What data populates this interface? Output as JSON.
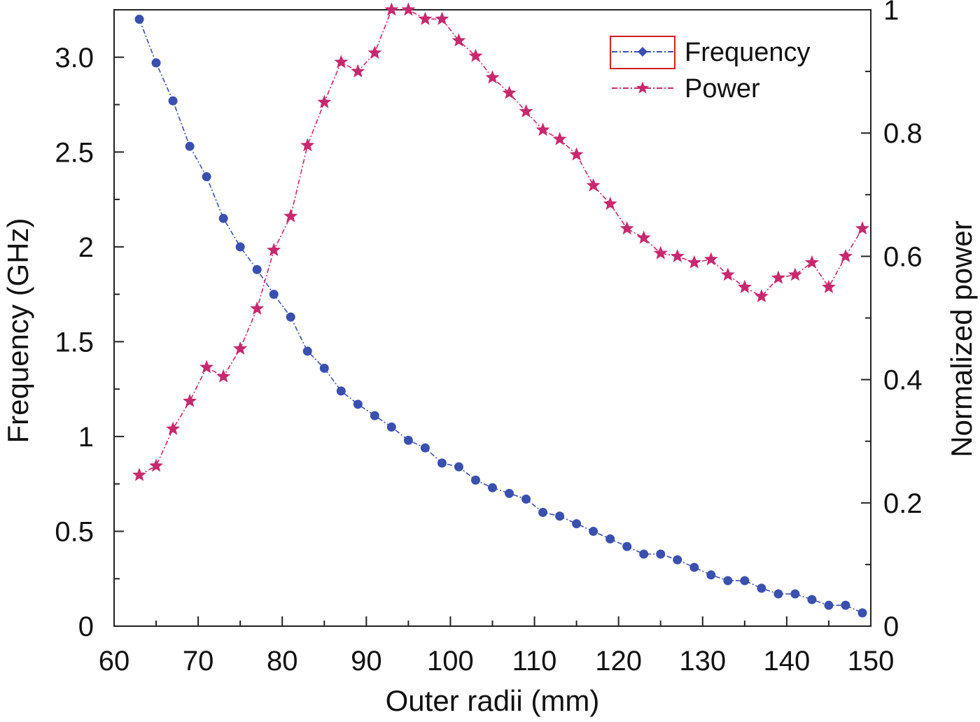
{
  "chart_data": {
    "type": "line",
    "xlabel": "Outer radii (mm)",
    "ylabel": "Frequency (GHz)",
    "y2label": "Normalized power",
    "xlim": [
      60,
      150
    ],
    "ylim": [
      0,
      3.25
    ],
    "y2lim": [
      0,
      1
    ],
    "xticks": [
      "60",
      "70",
      "80",
      "90",
      "100",
      "110",
      "120",
      "130",
      "140",
      "150"
    ],
    "yticks": [
      "0",
      "0.5",
      "1",
      "1.5",
      "2",
      "2.5",
      "3.0"
    ],
    "y2ticks": [
      "0",
      "0.2",
      "0.4",
      "0.6",
      "0.8",
      "1"
    ],
    "grid": false,
    "legend": {
      "position": "top-right"
    },
    "x": [
      63,
      65,
      67,
      69,
      71,
      73,
      75,
      77,
      79,
      81,
      83,
      85,
      87,
      89,
      91,
      93,
      95,
      97,
      99,
      101,
      103,
      105,
      107,
      109,
      111,
      113,
      115,
      117,
      119,
      121,
      123,
      125,
      127,
      129,
      131,
      133,
      135,
      137,
      139,
      141,
      143,
      145,
      147,
      149
    ],
    "series": [
      {
        "name": "Frequency",
        "axis": "left",
        "color": "#3a4fae",
        "marker": "circle",
        "values": [
          3.2,
          2.97,
          2.77,
          2.53,
          2.37,
          2.15,
          2.0,
          1.88,
          1.75,
          1.63,
          1.45,
          1.36,
          1.24,
          1.17,
          1.11,
          1.05,
          0.98,
          0.94,
          0.86,
          0.84,
          0.77,
          0.73,
          0.7,
          0.67,
          0.6,
          0.58,
          0.54,
          0.5,
          0.46,
          0.42,
          0.38,
          0.38,
          0.35,
          0.31,
          0.27,
          0.24,
          0.24,
          0.2,
          0.17,
          0.17,
          0.14,
          0.11,
          0.11,
          0.07
        ]
      },
      {
        "name": "Power",
        "axis": "right",
        "color": "#c8286e",
        "marker": "star",
        "values": [
          0.245,
          0.26,
          0.32,
          0.365,
          0.42,
          0.405,
          0.45,
          0.515,
          0.61,
          0.665,
          0.78,
          0.85,
          0.915,
          0.9,
          0.93,
          1.0,
          1.0,
          0.985,
          0.985,
          0.95,
          0.925,
          0.89,
          0.865,
          0.835,
          0.805,
          0.79,
          0.765,
          0.715,
          0.685,
          0.645,
          0.63,
          0.605,
          0.6,
          0.59,
          0.595,
          0.57,
          0.55,
          0.535,
          0.565,
          0.57,
          0.59,
          0.55,
          0.6,
          0.645
        ]
      }
    ]
  }
}
